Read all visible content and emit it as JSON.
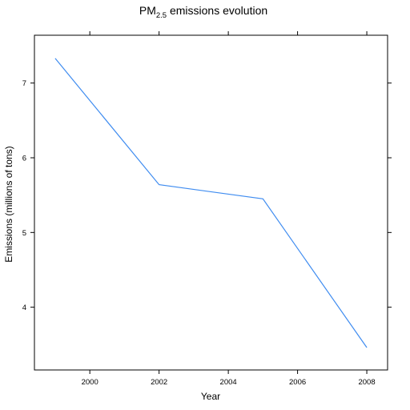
{
  "chart_data": {
    "type": "line",
    "title_main": "PM",
    "title_sub": "2.5",
    "title_rest": " emissions evolution",
    "xlabel": "Year",
    "ylabel": "Emissions (millions of tons)",
    "xlim": [
      1998.4,
      2008.6
    ],
    "ylim": [
      3.16,
      7.64
    ],
    "xticks": [
      2000,
      2002,
      2004,
      2006,
      2008
    ],
    "xtick_labels": [
      "2000",
      "2002",
      "2004",
      "2006",
      "2008"
    ],
    "yticks": [
      4,
      5,
      6,
      7
    ],
    "ytick_labels": [
      "4",
      "5",
      "6",
      "7"
    ],
    "grid": false,
    "series": [
      {
        "color": "#3f8cf0",
        "x": [
          1999,
          2002,
          2005,
          2008
        ],
        "y": [
          7.33,
          5.64,
          5.45,
          3.46
        ]
      }
    ]
  }
}
